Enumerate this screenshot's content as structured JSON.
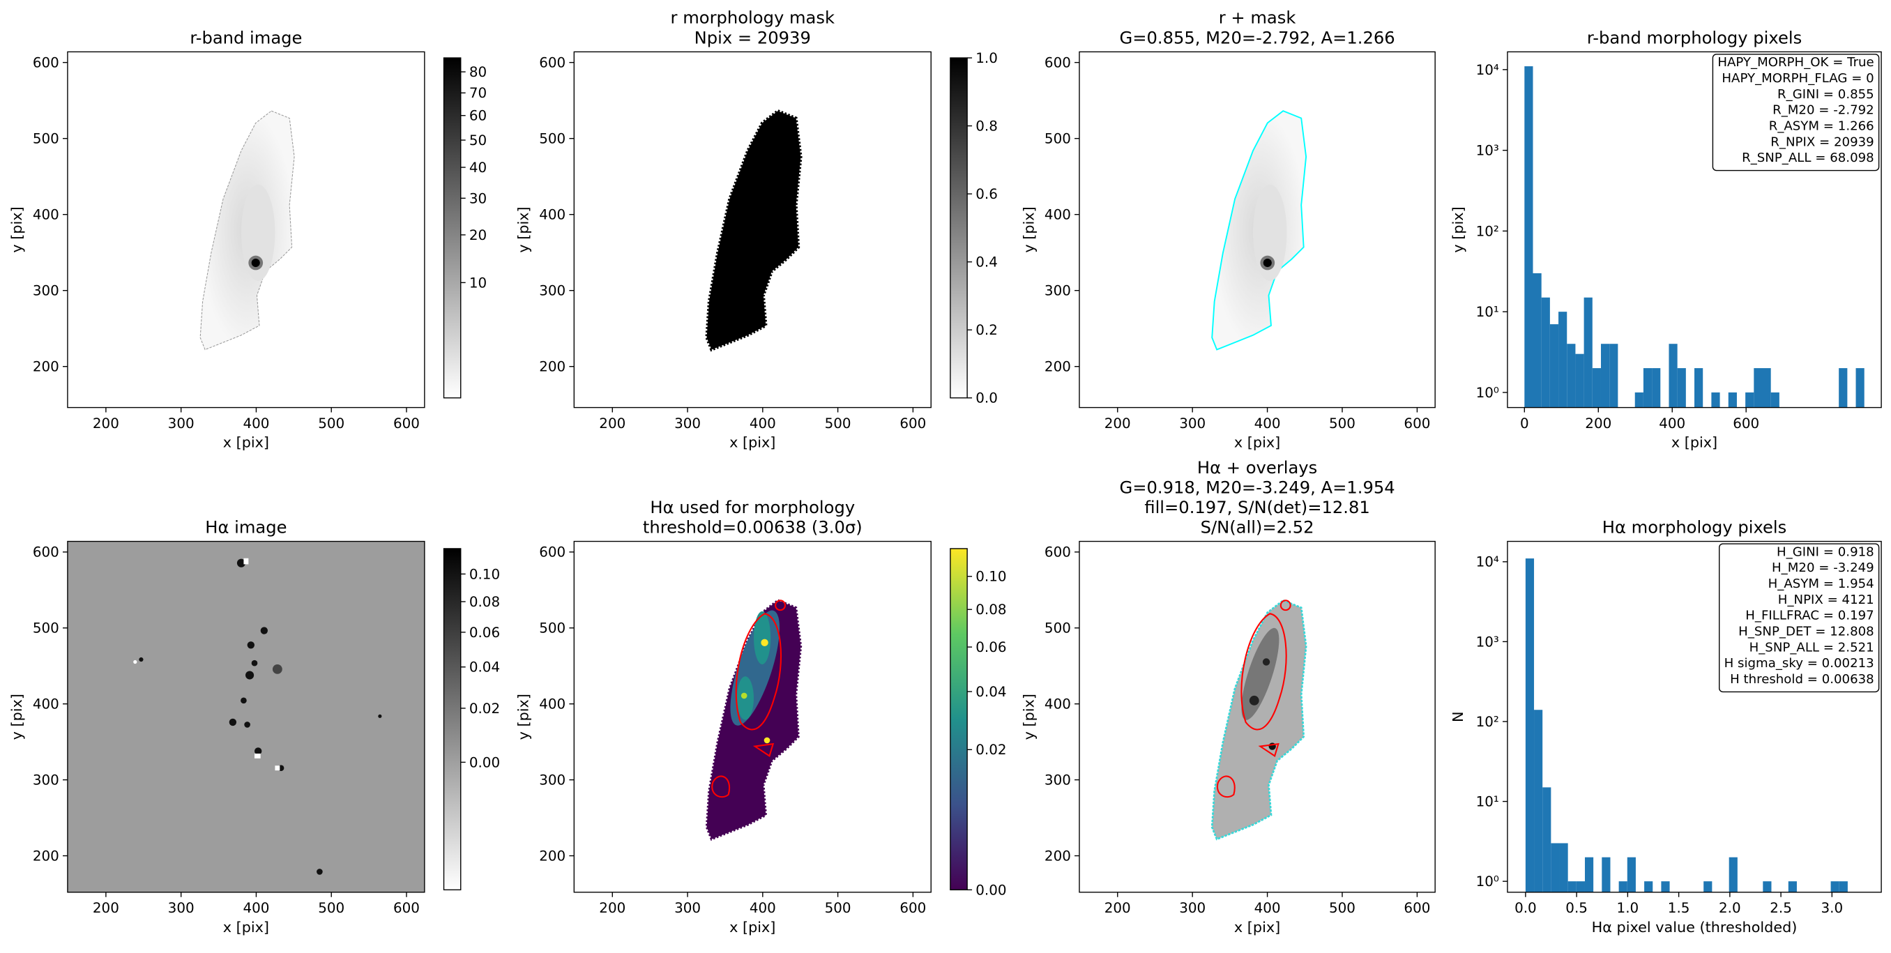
{
  "chart_data": [
    {
      "type": "image",
      "title": [
        "r-band image"
      ],
      "xlabel": "x [pix]",
      "ylabel": "y [pix]",
      "xlim": [
        149,
        624
      ],
      "ylim": [
        146,
        614
      ],
      "xticks": [
        200,
        300,
        400,
        500,
        600
      ],
      "yticks": [
        200,
        300,
        400,
        500,
        600
      ],
      "colorbar": {
        "cmap": "gray_r",
        "scale": "sqrt",
        "lim": [
          0,
          87
        ],
        "ticks": [
          10,
          20,
          30,
          40,
          50,
          60,
          70,
          80
        ]
      }
    },
    {
      "type": "image",
      "title": [
        "r morphology mask",
        "Npix = 20939"
      ],
      "xlabel": "x [pix]",
      "ylabel": "y [pix]",
      "xlim": [
        149,
        624
      ],
      "ylim": [
        146,
        614
      ],
      "xticks": [
        200,
        300,
        400,
        500,
        600
      ],
      "yticks": [
        200,
        300,
        400,
        500,
        600
      ],
      "colorbar": {
        "cmap": "gray_r",
        "scale": "linear",
        "lim": [
          0,
          1
        ],
        "ticks": [
          {
            "value": 0,
            "label": "0.0"
          },
          {
            "value": 0.2,
            "label": "0.2"
          },
          {
            "value": 0.4,
            "label": "0.4"
          },
          {
            "value": 0.6,
            "label": "0.6"
          },
          {
            "value": 0.8,
            "label": "0.8"
          },
          {
            "value": 1,
            "label": "1.0"
          }
        ]
      }
    },
    {
      "type": "image",
      "title": [
        "r + mask",
        "G=0.855, M20=-2.792, A=1.266"
      ],
      "xlabel": "x [pix]",
      "ylabel": "y [pix]",
      "xlim": [
        149,
        624
      ],
      "ylim": [
        146,
        614
      ],
      "xticks": [
        200,
        300,
        400,
        500,
        600
      ],
      "yticks": [
        200,
        300,
        400,
        500,
        600
      ]
    },
    {
      "type": "histogram",
      "title": [
        "r-band morphology pixels"
      ],
      "xlabel": "x [pix]",
      "ylabel": "y [pix]",
      "color": "#1f77b4",
      "log": true,
      "xlim": [
        -46,
        966
      ],
      "ylim": [
        0.65,
        16600
      ],
      "xticks": [
        0,
        200,
        400,
        600
      ],
      "yticks": [
        {
          "value": 1,
          "label": "10⁰"
        },
        {
          "value": 10,
          "label": "10¹"
        },
        {
          "value": 100,
          "label": "10²"
        },
        {
          "value": 1000,
          "label": "10³"
        },
        {
          "value": 10000,
          "label": "10⁴"
        }
      ],
      "bins": [
        0,
        23,
        46,
        69,
        92,
        115,
        138,
        161,
        184,
        207,
        230,
        253,
        276,
        299,
        322,
        345,
        368,
        391,
        414,
        437,
        460,
        483,
        506,
        529,
        552,
        575,
        598,
        621,
        644,
        667,
        690,
        713,
        736,
        759,
        782,
        805,
        828,
        851,
        874,
        897,
        920
      ],
      "counts": [
        11000,
        30,
        15,
        7,
        10,
        4,
        3,
        15,
        2,
        4,
        4,
        0,
        0,
        1,
        2,
        2,
        0,
        4,
        2,
        0,
        2,
        0,
        1,
        0,
        1,
        0,
        1,
        2,
        2,
        1,
        0,
        0,
        0,
        0,
        0,
        0,
        0,
        2,
        0,
        2
      ],
      "annotations": [
        "HAPY_MORPH_OK = True",
        "HAPY_MORPH_FLAG = 0",
        "R_GINI = 0.855",
        "R_M20 = -2.792",
        "R_ASYM = 1.266",
        "R_NPIX = 20939",
        "R_SNP_ALL = 68.098"
      ]
    },
    {
      "type": "image",
      "title": [
        "Hα image"
      ],
      "xlabel": "x [pix]",
      "ylabel": "y [pix]",
      "xlim": [
        149,
        624
      ],
      "ylim": [
        152,
        614
      ],
      "xticks": [
        200,
        300,
        400,
        500,
        600
      ],
      "yticks": [
        200,
        300,
        400,
        500,
        600
      ],
      "colorbar": {
        "cmap": "gray_r",
        "scale": "sqrt",
        "lim": [
          -0.0195,
          0.12
        ],
        "ticks": [
          {
            "value": 0,
            "label": "0.00"
          },
          {
            "value": 0.02,
            "label": "0.02"
          },
          {
            "value": 0.04,
            "label": "0.04"
          },
          {
            "value": 0.06,
            "label": "0.06"
          },
          {
            "value": 0.08,
            "label": "0.08"
          },
          {
            "value": 0.1,
            "label": "0.10"
          }
        ]
      }
    },
    {
      "type": "image",
      "title": [
        "Hα used for morphology",
        "threshold=0.00638 (3.0σ)"
      ],
      "xlabel": "x [pix]",
      "ylabel": "y [pix]",
      "xlim": [
        149,
        624
      ],
      "ylim": [
        152,
        614
      ],
      "xticks": [
        200,
        300,
        400,
        500,
        600
      ],
      "yticks": [
        200,
        300,
        400,
        500,
        600
      ],
      "colorbar": {
        "cmap": "viridis",
        "scale": "sqrt",
        "lim": [
          0,
          0.1185
        ],
        "ticks": [
          {
            "value": 0,
            "label": "0.00"
          },
          {
            "value": 0.02,
            "label": "0.02"
          },
          {
            "value": 0.04,
            "label": "0.04"
          },
          {
            "value": 0.06,
            "label": "0.06"
          },
          {
            "value": 0.08,
            "label": "0.08"
          },
          {
            "value": 0.1,
            "label": "0.10"
          }
        ]
      }
    },
    {
      "type": "image",
      "title": [
        "Hα + overlays",
        "G=0.918, M20=-3.249, A=1.954",
        "fill=0.197, S/N(det)=12.81",
        "S/N(all)=2.52"
      ],
      "xlabel": "x [pix]",
      "ylabel": "y [pix]",
      "xlim": [
        149,
        624
      ],
      "ylim": [
        152,
        614
      ],
      "xticks": [
        200,
        300,
        400,
        500,
        600
      ],
      "yticks": [
        200,
        300,
        400,
        500,
        600
      ]
    },
    {
      "type": "histogram",
      "title": [
        "Hα morphology pixels"
      ],
      "xlabel": "Hα pixel value (thresholded)",
      "ylabel": "N",
      "color": "#1f77b4",
      "log": true,
      "xlim": [
        -0.177,
        3.483
      ],
      "ylim": [
        0.73,
        18000
      ],
      "xticks": [
        {
          "value": 0,
          "label": "0.0"
        },
        0.5,
        {
          "value": 1,
          "label": "1.0"
        },
        1.5,
        {
          "value": 2,
          "label": "2.0"
        },
        2.5,
        {
          "value": 3,
          "label": "3.0"
        }
      ],
      "yticks": [
        {
          "value": 1,
          "label": "10⁰"
        },
        {
          "value": 10,
          "label": "10¹"
        },
        {
          "value": 100,
          "label": "10²"
        },
        {
          "value": 1000,
          "label": "10³"
        },
        {
          "value": 10000,
          "label": "10⁴"
        }
      ],
      "bins": [
        0,
        0.083,
        0.166,
        0.249,
        0.332,
        0.415,
        0.498,
        0.581,
        0.664,
        0.747,
        0.83,
        0.913,
        0.996,
        1.079,
        1.162,
        1.245,
        1.328,
        1.411,
        1.494,
        1.577,
        1.66,
        1.743,
        1.826,
        1.909,
        1.992,
        2.075,
        2.158,
        2.241,
        2.324,
        2.407,
        2.49,
        2.573,
        2.656,
        2.739,
        2.822,
        2.905,
        2.988,
        3.071,
        3.154,
        3.237,
        3.32
      ],
      "counts": [
        11000,
        140,
        15,
        3,
        3,
        1,
        1,
        2,
        0,
        2,
        0,
        1,
        2,
        0,
        1,
        0,
        1,
        0,
        0,
        0,
        0,
        1,
        0,
        0,
        2,
        0,
        0,
        0,
        1,
        0,
        0,
        1,
        0,
        0,
        0,
        0,
        1,
        1,
        0,
        0
      ],
      "annotations": [
        "H_GINI = 0.918",
        "H_M20 = -3.249",
        "H_ASYM = 1.954",
        "H_NPIX = 4121",
        "H_FILLFRAC = 0.197",
        "H_SNP_DET = 12.808",
        "H_SNP_ALL = 2.521",
        "H sigma_sky = 0.00213",
        "H threshold = 0.00638"
      ]
    }
  ]
}
